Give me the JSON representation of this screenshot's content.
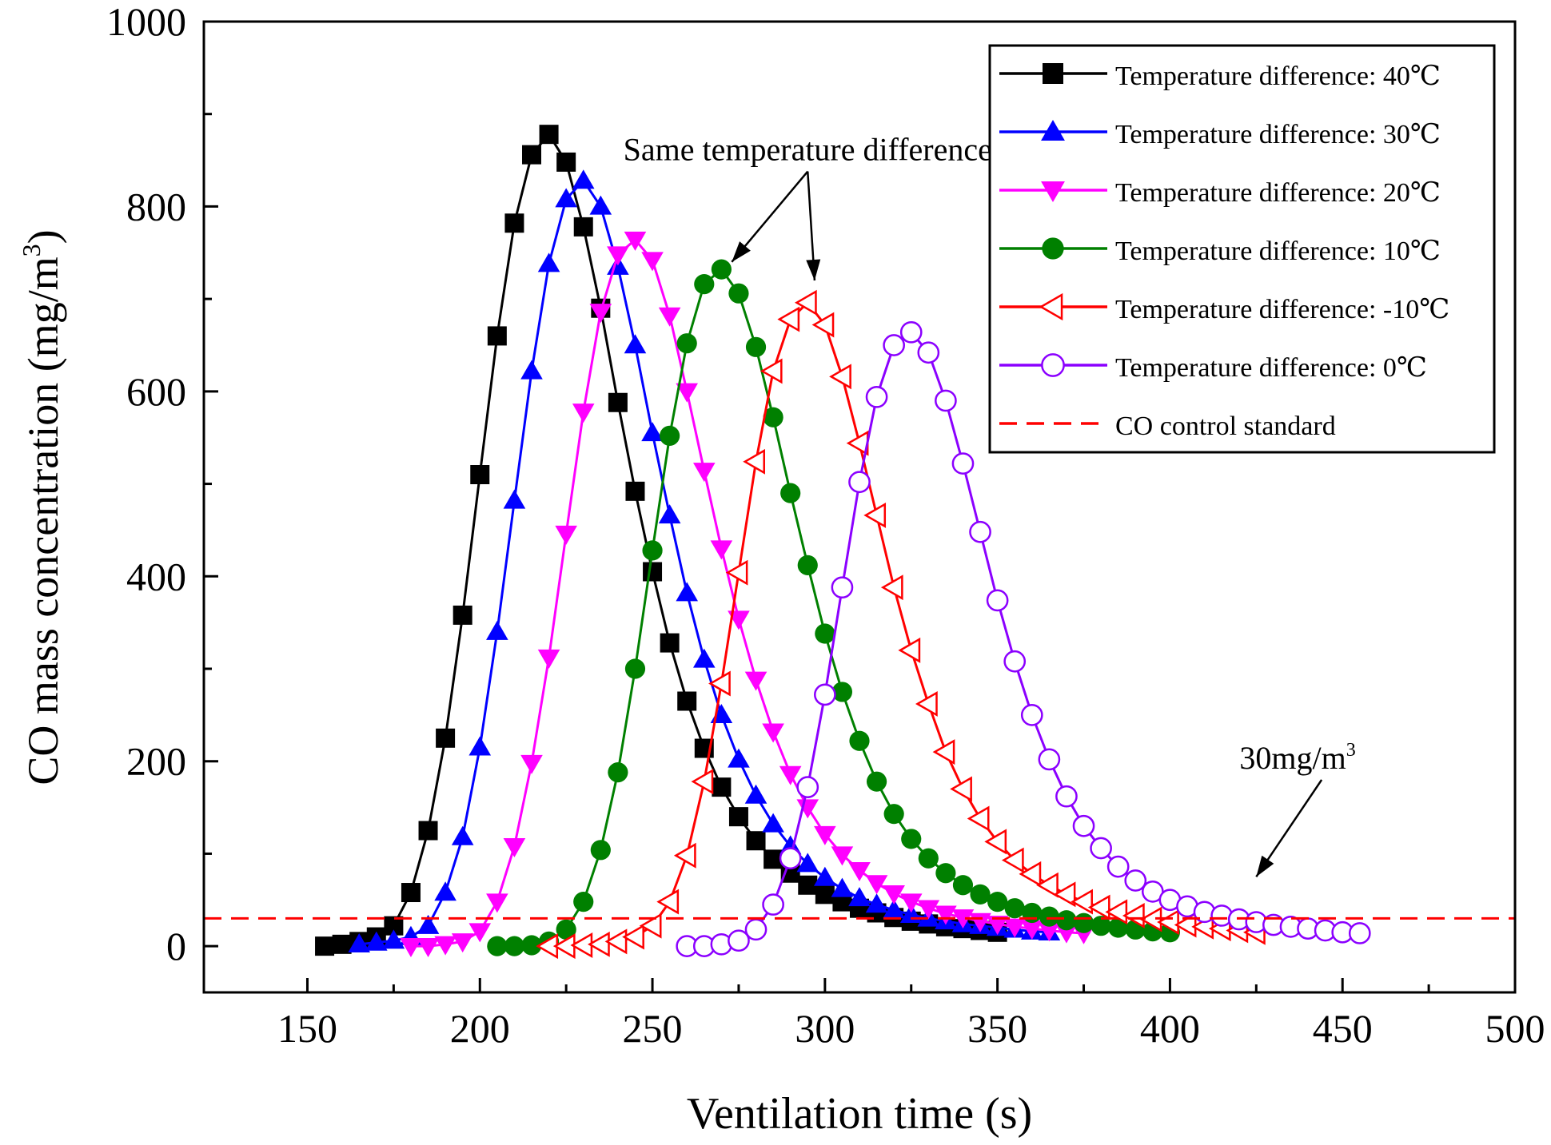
{
  "chart_data": {
    "type": "line",
    "title": "",
    "xlabel": "Ventilation time (s)",
    "ylabel": "CO mass concentration (mg/m",
    "ylabel_sup": "3",
    "ylabel_end": ")",
    "xlim": [
      120,
      500
    ],
    "ylim": [
      -50,
      1000
    ],
    "xticks": [
      150,
      200,
      250,
      300,
      350,
      400,
      450,
      500
    ],
    "yticks": [
      0,
      200,
      400,
      600,
      800,
      1000
    ],
    "grid": false,
    "legend_position": "top-right",
    "series": [
      {
        "name": "Temperature difference: 40℃",
        "color": "#000000",
        "marker": "square-filled",
        "x": [
          155,
          160,
          165,
          170,
          175,
          180,
          185,
          190,
          195,
          200,
          205,
          210,
          215,
          220,
          225,
          230,
          235,
          240,
          245,
          250,
          255,
          260,
          265,
          270,
          275,
          280,
          285,
          290,
          295,
          300,
          305,
          310,
          315,
          320,
          325,
          330,
          335,
          340,
          345,
          350
        ],
        "y": [
          0,
          2,
          5,
          10,
          22,
          58,
          125,
          225,
          358,
          510,
          660,
          782,
          856,
          878,
          848,
          778,
          690,
          588,
          492,
          405,
          328,
          265,
          214,
          172,
          140,
          114,
          94,
          79,
          66,
          56,
          48,
          41,
          36,
          31,
          27,
          24,
          21,
          19,
          17,
          15
        ]
      },
      {
        "name": "Temperature difference: 30℃",
        "color": "#0000ff",
        "marker": "triangle-up-filled",
        "x": [
          165,
          170,
          175,
          180,
          185,
          190,
          195,
          200,
          205,
          210,
          215,
          220,
          225,
          230,
          235,
          240,
          245,
          250,
          255,
          260,
          265,
          270,
          275,
          280,
          285,
          290,
          295,
          300,
          305,
          310,
          315,
          320,
          325,
          330,
          335,
          340,
          345,
          350,
          355,
          360,
          365
        ],
        "y": [
          2,
          4,
          6,
          10,
          22,
          58,
          118,
          215,
          340,
          482,
          622,
          738,
          808,
          828,
          800,
          735,
          650,
          555,
          466,
          382,
          310,
          250,
          202,
          163,
          132,
          108,
          89,
          74,
          62,
          52,
          45,
          39,
          34,
          30,
          27,
          24,
          22,
          20,
          18,
          16,
          15
        ]
      },
      {
        "name": "Temperature difference: 20℃",
        "color": "#ff00ff",
        "marker": "triangle-down-filled",
        "x": [
          180,
          185,
          190,
          195,
          200,
          205,
          210,
          215,
          220,
          225,
          230,
          235,
          240,
          245,
          250,
          255,
          260,
          265,
          270,
          275,
          280,
          285,
          290,
          295,
          300,
          305,
          310,
          315,
          320,
          325,
          330,
          335,
          340,
          345,
          350,
          355,
          360,
          365,
          370,
          375
        ],
        "y": [
          0,
          0,
          2,
          5,
          16,
          48,
          108,
          198,
          312,
          446,
          578,
          686,
          748,
          764,
          742,
          682,
          600,
          514,
          430,
          354,
          288,
          232,
          186,
          150,
          121,
          99,
          82,
          68,
          57,
          48,
          41,
          35,
          31,
          27,
          24,
          21,
          19,
          17,
          15,
          14
        ]
      },
      {
        "name": "Temperature difference: 10℃",
        "color": "#008000",
        "marker": "circle-filled",
        "x": [
          205,
          210,
          215,
          220,
          225,
          230,
          235,
          240,
          245,
          250,
          255,
          260,
          265,
          270,
          275,
          280,
          285,
          290,
          295,
          300,
          305,
          310,
          315,
          320,
          325,
          330,
          335,
          340,
          345,
          350,
          355,
          360,
          365,
          370,
          375,
          380,
          385,
          390,
          395,
          400
        ],
        "y": [
          0,
          0,
          1,
          5,
          18,
          48,
          104,
          188,
          300,
          428,
          552,
          652,
          716,
          732,
          706,
          648,
          572,
          490,
          412,
          338,
          275,
          222,
          178,
          143,
          116,
          95,
          79,
          66,
          56,
          48,
          41,
          36,
          32,
          28,
          25,
          22,
          20,
          18,
          16,
          15
        ]
      },
      {
        "name": "Temperature difference: -10℃",
        "color": "#ff0000",
        "marker": "triangle-left-open",
        "x": [
          220,
          225,
          230,
          235,
          240,
          245,
          250,
          255,
          260,
          265,
          270,
          275,
          280,
          285,
          290,
          295,
          300,
          305,
          310,
          315,
          320,
          325,
          330,
          335,
          340,
          345,
          350,
          355,
          360,
          365,
          370,
          375,
          380,
          385,
          390,
          395,
          400,
          405,
          410,
          415,
          420,
          425
        ],
        "y": [
          0,
          0,
          1,
          2,
          5,
          10,
          22,
          48,
          98,
          178,
          284,
          404,
          524,
          622,
          678,
          696,
          672,
          616,
          544,
          466,
          388,
          320,
          262,
          210,
          170,
          138,
          113,
          93,
          78,
          66,
          56,
          48,
          42,
          37,
          33,
          29,
          26,
          23,
          21,
          19,
          17,
          15
        ]
      },
      {
        "name": "Temperature difference:  0℃",
        "color": "#8b00ff",
        "marker": "circle-open",
        "x": [
          260,
          265,
          270,
          275,
          280,
          285,
          290,
          295,
          300,
          305,
          310,
          315,
          320,
          325,
          330,
          335,
          340,
          345,
          350,
          355,
          360,
          365,
          370,
          375,
          380,
          385,
          390,
          395,
          400,
          405,
          410,
          415,
          420,
          425,
          430,
          435,
          440,
          445,
          450,
          455
        ],
        "y": [
          0,
          0,
          2,
          6,
          18,
          45,
          95,
          172,
          272,
          388,
          502,
          594,
          650,
          664,
          642,
          590,
          522,
          448,
          374,
          308,
          250,
          202,
          162,
          130,
          106,
          86,
          71,
          59,
          50,
          43,
          37,
          33,
          29,
          26,
          23,
          21,
          19,
          17,
          15,
          14
        ]
      },
      {
        "name": "CO control standard",
        "color": "#ff0000",
        "marker": "none",
        "line": "dashed",
        "x": [
          120,
          500
        ],
        "y": [
          30,
          30
        ]
      }
    ],
    "annotations": [
      {
        "text": "Same temperature difference",
        "x": 295,
        "y": 850,
        "arrows_to": [
          [
            273,
            740
          ],
          [
            297,
            720
          ]
        ]
      },
      {
        "text": "30mg/m",
        "sup": "3",
        "x": 437,
        "y": 192,
        "arrows_to": [
          [
            425,
            75
          ]
        ]
      }
    ]
  }
}
